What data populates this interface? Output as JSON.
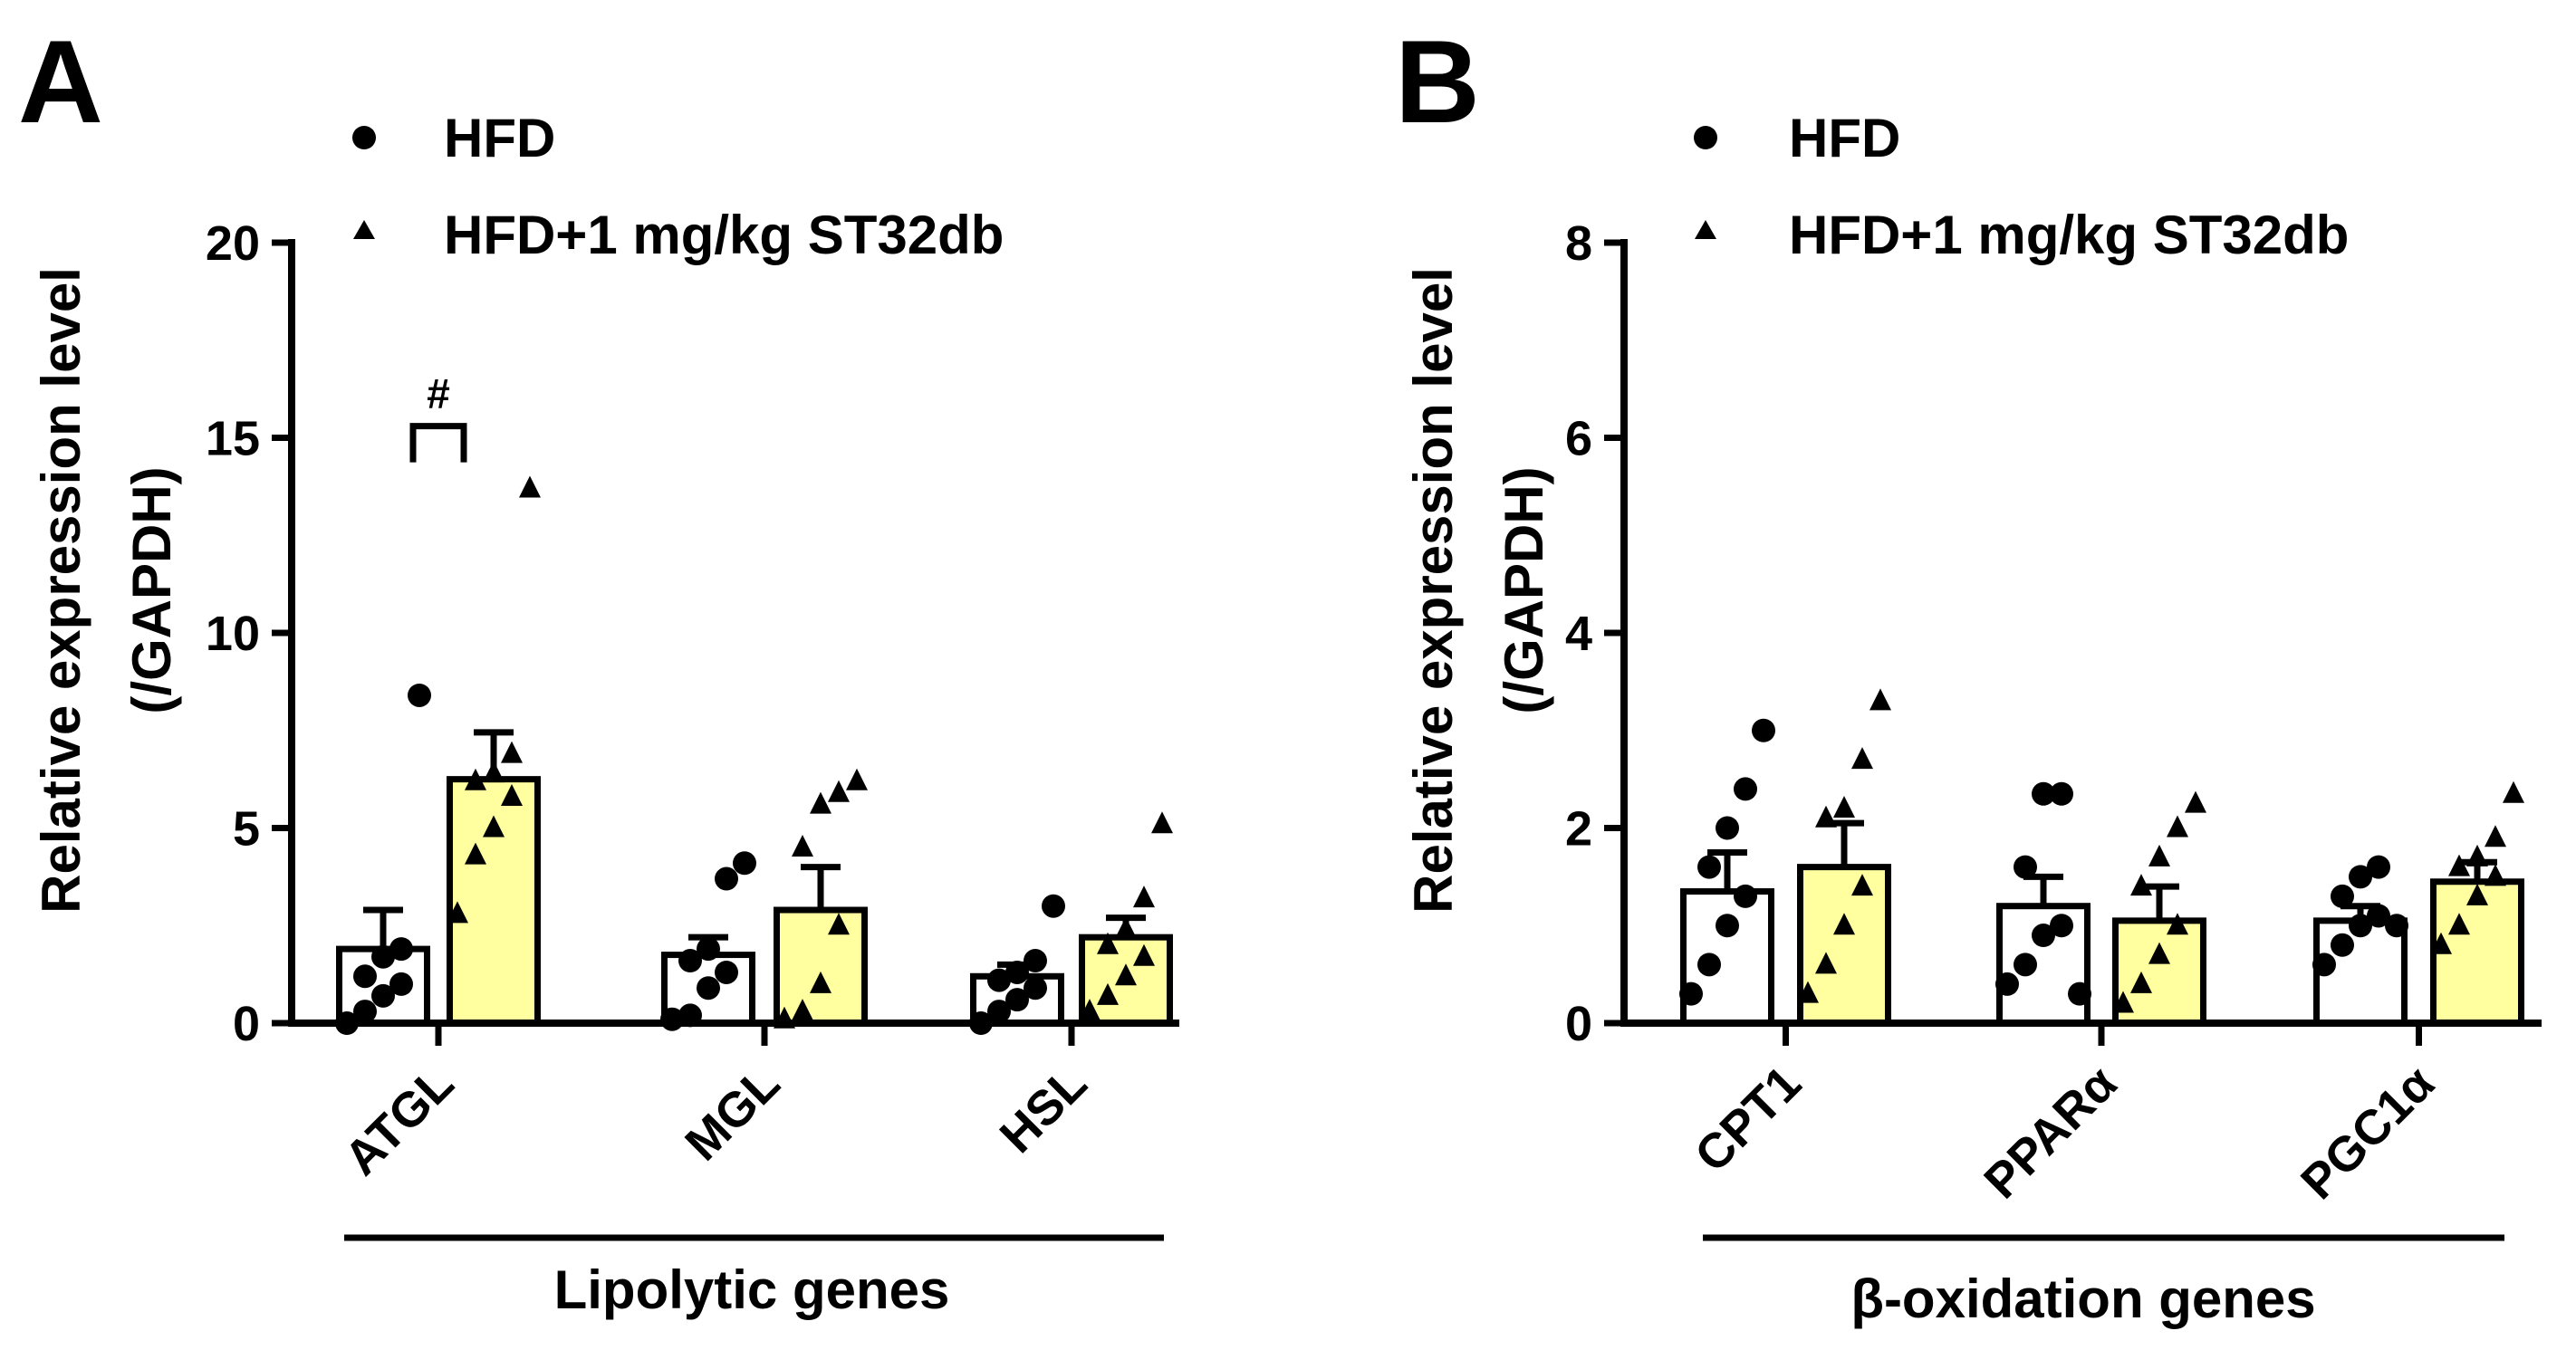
{
  "legend": {
    "series": [
      {
        "name": "HFD",
        "marker": "circle",
        "fill": "#ffffff"
      },
      {
        "name": "HFD+1 mg/kg ST32db",
        "marker": "triangle",
        "fill": "#ffffa0"
      }
    ]
  },
  "chart_data": [
    {
      "panel": "A",
      "type": "bar",
      "title": "",
      "ylabel": "Relative expression level",
      "ylabel2": "(/GAPDH)",
      "ylim": [
        0,
        20
      ],
      "yticks": [
        0,
        5,
        10,
        15,
        20
      ],
      "categories": [
        "ATGL",
        "MGL",
        "HSL"
      ],
      "group_label": "Lipolytic genes",
      "series": [
        {
          "name": "HFD",
          "values": [
            1.9,
            1.75,
            1.2
          ],
          "sem": [
            1.0,
            0.45,
            0.3
          ],
          "points": [
            [
              0.0,
              0.3,
              0.7,
              1.0,
              1.2,
              1.7,
              1.9,
              8.4
            ],
            [
              0.1,
              0.2,
              0.9,
              1.3,
              1.6,
              1.9,
              3.7,
              4.1
            ],
            [
              0.0,
              0.3,
              0.6,
              0.9,
              1.1,
              1.3,
              1.6,
              3.0
            ]
          ]
        },
        {
          "name": "HFD+1 mg/kg ST32db",
          "values": [
            6.25,
            2.9,
            2.2
          ],
          "sem": [
            1.2,
            1.1,
            0.5
          ],
          "points": [
            [
              2.8,
              4.3,
              5.0,
              5.8,
              6.2,
              6.4,
              6.9,
              13.7
            ],
            [
              0.1,
              0.3,
              1.0,
              2.5,
              4.5,
              5.6,
              5.9,
              6.2
            ],
            [
              0.3,
              0.7,
              1.2,
              1.7,
              2.0,
              2.4,
              3.2,
              5.1
            ]
          ]
        }
      ],
      "annotations": [
        {
          "text": "#",
          "between": "ATGL HFD vs ATGL ST32db",
          "y": 15.3
        }
      ]
    },
    {
      "panel": "B",
      "type": "bar",
      "title": "",
      "ylabel": "Relative expression level",
      "ylabel2": "(/GAPDH)",
      "ylim": [
        0,
        8
      ],
      "yticks": [
        0,
        2,
        4,
        6,
        8
      ],
      "categories": [
        "CPT1",
        "PPARα",
        "PGC1α"
      ],
      "group_label": "β-oxidation genes",
      "series": [
        {
          "name": "HFD",
          "values": [
            1.35,
            1.2,
            1.05
          ],
          "sem": [
            0.4,
            0.3,
            0.15
          ],
          "points": [
            [
              0.3,
              0.6,
              1.0,
              1.3,
              1.6,
              2.0,
              2.4,
              3.0
            ],
            [
              0.4,
              0.6,
              0.9,
              1.0,
              1.6,
              2.35,
              2.35,
              0.3
            ],
            [
              0.6,
              0.8,
              1.0,
              1.1,
              1.3,
              1.5,
              1.6,
              1.0
            ]
          ]
        },
        {
          "name": "HFD+1 mg/kg ST32db",
          "values": [
            1.6,
            1.05,
            1.45
          ],
          "sem": [
            0.45,
            0.35,
            0.2
          ],
          "points": [
            [
              0.3,
              0.6,
              1.0,
              1.4,
              2.1,
              2.2,
              2.7,
              3.3
            ],
            [
              0.2,
              0.4,
              0.7,
              1.0,
              1.4,
              1.7,
              2.0,
              2.25
            ],
            [
              0.8,
              1.0,
              1.3,
              1.5,
              1.6,
              1.7,
              1.9,
              2.35
            ]
          ]
        }
      ],
      "annotations": []
    }
  ]
}
